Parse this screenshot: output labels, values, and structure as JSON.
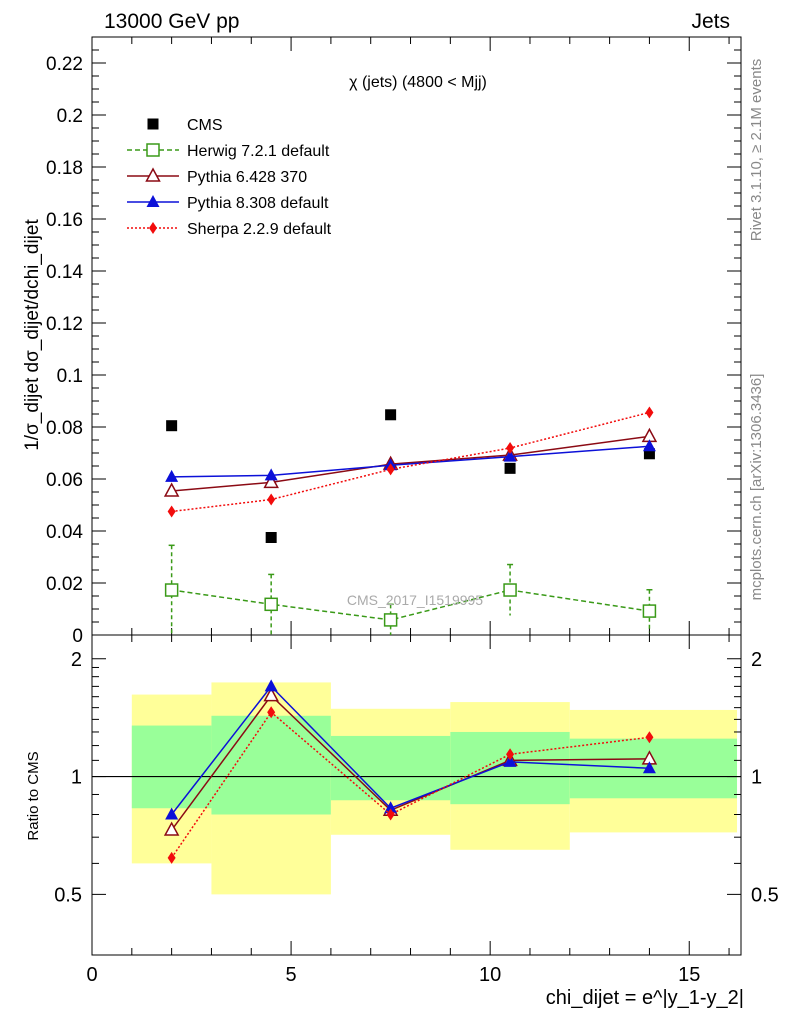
{
  "header": {
    "left": "13000 GeV pp",
    "right": "Jets"
  },
  "side_labels": {
    "rivet": "Rivet 3.1.10, ≥ 2.1M events",
    "mcplots": "mcplots.cern.ch [arXiv:1306.3436]"
  },
  "watermark": "CMS_2017_I1519995",
  "chart_data": {
    "type": "scatter",
    "title": "χ (jets) (4800 < Mjj)",
    "ylabel": "1/σ_dijet dσ_dijet/dchi_dijet",
    "xlabel": "chi_dijet = e^|y_1-y_2|",
    "xlim": [
      0,
      16.3
    ],
    "ylim": [
      0,
      0.23
    ],
    "x_ticks": [
      "0",
      "5",
      "10",
      "15"
    ],
    "y_ticks": [
      "0",
      "0.02",
      "0.04",
      "0.06",
      "0.08",
      "0.1",
      "0.12",
      "0.14",
      "0.16",
      "0.18",
      "0.2",
      "0.22"
    ],
    "legend_position": "top-left",
    "x": [
      2,
      4.5,
      7.5,
      10.5,
      14
    ],
    "series": [
      {
        "name": "CMS",
        "values": [
          0.0805,
          0.0375,
          0.0847,
          0.0641,
          0.0697
        ],
        "color": "#000000",
        "marker": "square"
      },
      {
        "name": "Herwig 7.2.1 default",
        "values": [
          0.0173,
          0.0118,
          0.0058,
          0.0173,
          0.0092
        ],
        "errors": [
          0.0172,
          0.0115,
          0.006,
          0.0098,
          0.0082
        ],
        "color": "#3a9a18",
        "marker": "open-square",
        "line": "dashed"
      },
      {
        "name": "Pythia 6.428 370",
        "values": [
          0.0554,
          0.0587,
          0.0657,
          0.0692,
          0.0764
        ],
        "color": "#8b0a14",
        "marker": "open-triangle",
        "line": "solid"
      },
      {
        "name": "Pythia 8.308 default",
        "values": [
          0.0608,
          0.0614,
          0.0653,
          0.0686,
          0.0726
        ],
        "color": "#0c10d8",
        "marker": "triangle",
        "line": "solid"
      },
      {
        "name": "Sherpa 2.2.9 default",
        "values": [
          0.0475,
          0.0521,
          0.0637,
          0.0719,
          0.0856
        ],
        "color": "#f20c0c",
        "marker": "diamond",
        "line": "dotted"
      }
    ],
    "ratio": {
      "ylabel": "Ratio to CMS",
      "ylim": [
        0.35,
        2.3
      ],
      "y_ticks": [
        "0.5",
        "1",
        "2"
      ],
      "reference": 1,
      "bins": [
        {
          "xlo": 1,
          "xhi": 3,
          "band_2s": [
            0.6,
            1.62
          ],
          "band_1s": [
            0.83,
            1.35
          ]
        },
        {
          "xlo": 3,
          "xhi": 6,
          "band_2s": [
            0.5,
            1.74
          ],
          "band_1s": [
            0.8,
            1.43
          ]
        },
        {
          "xlo": 6,
          "xhi": 9,
          "band_2s": [
            0.71,
            1.49
          ],
          "band_1s": [
            0.87,
            1.27
          ]
        },
        {
          "xlo": 9,
          "xhi": 12,
          "band_2s": [
            0.65,
            1.55
          ],
          "band_1s": [
            0.85,
            1.3
          ]
        },
        {
          "xlo": 12,
          "xhi": 16.2,
          "band_2s": [
            0.72,
            1.48
          ],
          "band_1s": [
            0.88,
            1.25
          ]
        }
      ],
      "band_colors": {
        "outer": "#ffff99",
        "inner": "#99ff99"
      },
      "series": [
        {
          "name": "Pythia 6.428 370",
          "values": [
            0.73,
            1.61,
            0.82,
            1.1,
            1.11
          ]
        },
        {
          "name": "Pythia 8.308 default",
          "values": [
            0.8,
            1.7,
            0.83,
            1.09,
            1.05
          ]
        },
        {
          "name": "Sherpa 2.2.9 default",
          "values": [
            0.62,
            1.46,
            0.8,
            1.14,
            1.26
          ]
        }
      ]
    }
  }
}
